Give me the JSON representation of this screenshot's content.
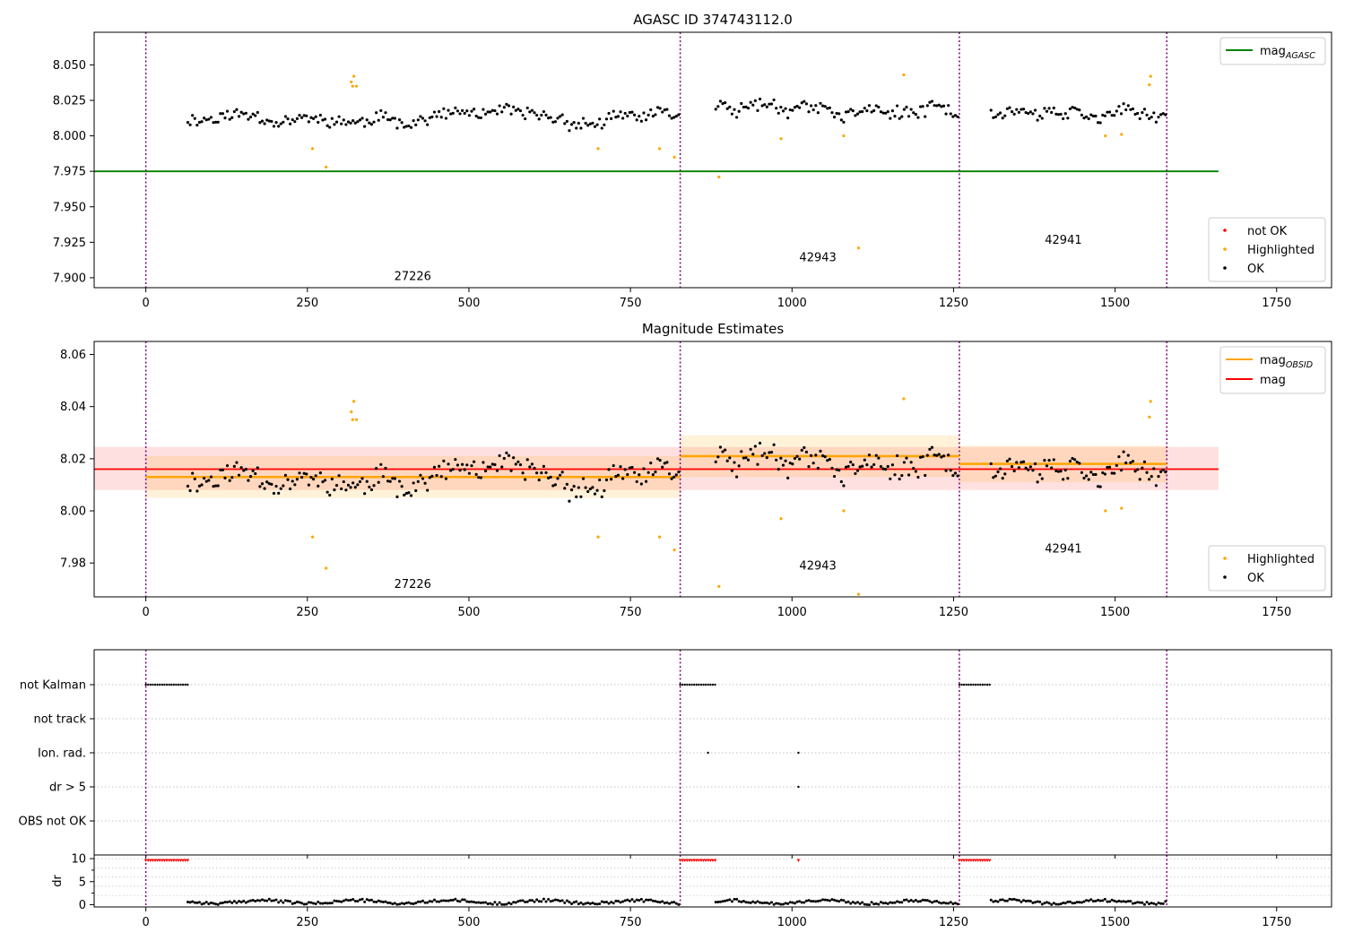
{
  "chart_data": [
    {
      "type": "scatter",
      "title": "AGASC ID 374743112.0",
      "xlim": [
        -80,
        1835
      ],
      "ylim": [
        7.893,
        8.073
      ],
      "xticks": [
        0,
        250,
        500,
        750,
        1000,
        1250,
        1500,
        1750
      ],
      "xtick_labels": [
        "0",
        "250",
        "500",
        "750",
        "1000",
        "1250",
        "1500",
        "1750"
      ],
      "yticks": [
        7.9,
        7.925,
        7.95,
        7.975,
        8.0,
        8.025,
        8.05
      ],
      "ytick_labels": [
        "7.900",
        "7.925",
        "7.950",
        "7.975",
        "8.000",
        "8.025",
        "8.050"
      ],
      "legend_upper": [
        {
          "label": "mag",
          "sub": "AGASC",
          "color": "#008000"
        }
      ],
      "legend_lower": [
        {
          "label": "not OK",
          "color": "#ff0000"
        },
        {
          "label": "Highlighted",
          "color": "#ffa500"
        },
        {
          "label": "OK",
          "color": "#000000"
        }
      ],
      "hlines": [
        {
          "y": 7.975,
          "x0": -80,
          "x1": 1660,
          "color": "#008000"
        }
      ],
      "vlines": [
        0,
        827,
        1259,
        1580
      ],
      "annotations": [
        {
          "text": "27226",
          "x": 413,
          "y": 7.8985
        },
        {
          "text": "42943",
          "x": 1040,
          "y": 7.9115
        },
        {
          "text": "42941",
          "x": 1420,
          "y": 7.924
        }
      ],
      "ok_segments": [
        {
          "x0": 65,
          "x1": 825,
          "step": 3.6,
          "center": 8.012,
          "noise": 0.006,
          "seed": 11
        },
        {
          "x0": 882,
          "x1": 1259,
          "step": 3.6,
          "center": 8.021,
          "noise": 0.007,
          "seed": 23
        },
        {
          "x0": 1308,
          "x1": 1580,
          "step": 3.6,
          "center": 8.018,
          "noise": 0.006,
          "seed": 37
        }
      ],
      "highlighted": [
        [
          258,
          7.991
        ],
        [
          279,
          7.978
        ],
        [
          318,
          8.038
        ],
        [
          322,
          8.042
        ],
        [
          320,
          8.035
        ],
        [
          326,
          8.035
        ],
        [
          700,
          7.991
        ],
        [
          795,
          7.991
        ],
        [
          818,
          7.985
        ],
        [
          887,
          7.971
        ],
        [
          983,
          7.998
        ],
        [
          1080,
          8.0
        ],
        [
          1103,
          7.921
        ],
        [
          1173,
          8.043
        ],
        [
          1485,
          8.0
        ],
        [
          1510,
          8.001
        ],
        [
          1553,
          8.036
        ],
        [
          1555,
          8.042
        ]
      ]
    },
    {
      "type": "scatter",
      "title": "Magnitude Estimates",
      "xlim": [
        -80,
        1835
      ],
      "ylim": [
        7.967,
        8.065
      ],
      "xticks": [
        0,
        250,
        500,
        750,
        1000,
        1250,
        1500,
        1750
      ],
      "xtick_labels": [
        "0",
        "250",
        "500",
        "750",
        "1000",
        "1250",
        "1500",
        "1750"
      ],
      "yticks": [
        7.98,
        8.0,
        8.02,
        8.04,
        8.06
      ],
      "ytick_labels": [
        "7.98",
        "8.00",
        "8.02",
        "8.04",
        "8.06"
      ],
      "legend_upper": [
        {
          "label": "mag",
          "sub": "OBSID",
          "color": "#ffa500"
        },
        {
          "label": "mag",
          "sub": "",
          "color": "#ff0000"
        }
      ],
      "legend_lower": [
        {
          "label": "Highlighted",
          "color": "#ffa500"
        },
        {
          "label": "OK",
          "color": "#000000"
        }
      ],
      "mag_line": {
        "y": 8.016,
        "band": [
          8.008,
          8.0245
        ],
        "x0": -80,
        "x1": 1660,
        "color": "#ff0000"
      },
      "obsid_mags": [
        {
          "x0": 0,
          "x1": 827,
          "y": 8.013,
          "band": [
            8.005,
            8.021
          ]
        },
        {
          "x0": 827,
          "x1": 1259,
          "y": 8.021,
          "band": [
            8.013,
            8.029
          ]
        },
        {
          "x0": 1259,
          "x1": 1580,
          "y": 8.018,
          "band": [
            8.011,
            8.025
          ]
        }
      ],
      "vlines": [
        0,
        827,
        1259,
        1580
      ],
      "annotations": [
        {
          "text": "27226",
          "x": 413,
          "y": 7.9705
        },
        {
          "text": "42943",
          "x": 1040,
          "y": 7.9775
        },
        {
          "text": "42941",
          "x": 1420,
          "y": 7.984
        }
      ],
      "highlighted": [
        [
          258,
          7.99
        ],
        [
          279,
          7.978
        ],
        [
          318,
          8.038
        ],
        [
          322,
          8.042
        ],
        [
          320,
          8.035
        ],
        [
          326,
          8.035
        ],
        [
          700,
          7.99
        ],
        [
          795,
          7.99
        ],
        [
          818,
          7.985
        ],
        [
          887,
          7.971
        ],
        [
          983,
          7.997
        ],
        [
          1080,
          8.0
        ],
        [
          1103,
          7.968
        ],
        [
          1173,
          8.043
        ],
        [
          1485,
          8.0
        ],
        [
          1510,
          8.001
        ],
        [
          1553,
          8.036
        ],
        [
          1555,
          8.042
        ]
      ]
    },
    {
      "type": "scatter",
      "title": "",
      "xlim": [
        -80,
        1835
      ],
      "xticks": [
        0,
        250,
        500,
        750,
        1000,
        1250,
        1500,
        1750
      ],
      "xtick_labels": [
        "0",
        "250",
        "500",
        "750",
        "1000",
        "1250",
        "1500",
        "1750"
      ],
      "flag_rows": [
        "not Kalman",
        "not track",
        "Ion. rad.",
        "dr > 5",
        "OBS not OK"
      ],
      "flag_points": {
        "not Kalman": [
          [
            0,
            65
          ],
          [
            827,
            882
          ],
          [
            1259,
            1308
          ]
        ],
        "Ion. rad.": [
          [
            870,
            870
          ],
          [
            1010,
            1010
          ]
        ],
        "dr > 5": [
          [
            1010,
            1010
          ]
        ]
      },
      "vlines": [
        0,
        827,
        1259,
        1580
      ],
      "dr": {
        "ylabel": "dr",
        "ylim": [
          -0.5,
          10.8
        ],
        "yticks": [
          0,
          5,
          10
        ],
        "ytick_labels": [
          "0",
          "5",
          "10"
        ],
        "clipped_value": 9.6,
        "clipped_ranges": [
          [
            0,
            65
          ],
          [
            827,
            882
          ],
          [
            1259,
            1308
          ],
          [
            1010,
            1010
          ]
        ],
        "low_segments": [
          [
            65,
            825
          ],
          [
            882,
            1259
          ],
          [
            1308,
            1580
          ]
        ]
      }
    }
  ]
}
